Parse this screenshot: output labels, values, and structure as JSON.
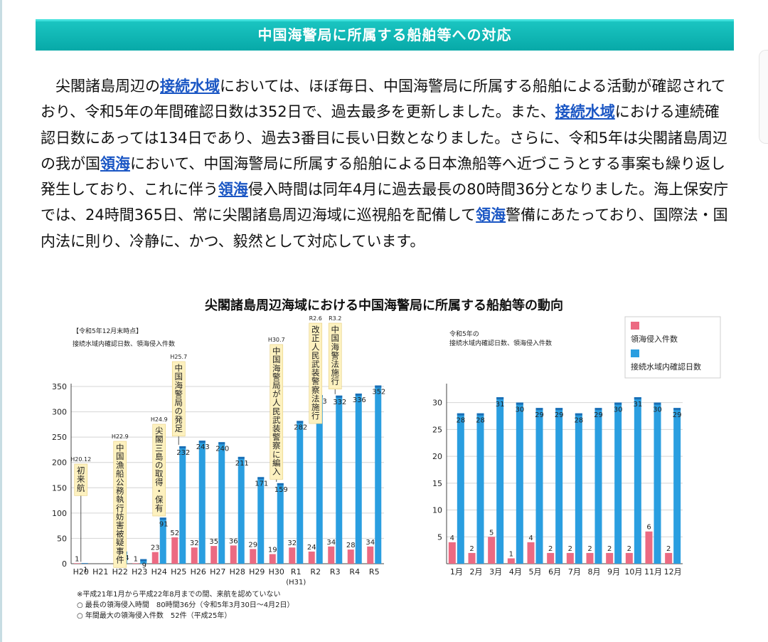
{
  "header": {
    "title": "中国海警局に所属する船舶等への対応"
  },
  "body": {
    "seg1": "尖閣諸島周辺の",
    "link1": "接続水域",
    "seg2": "においては、ほぼ毎日、中国海警局に所属する船舶による活動が確認されており、令和5年の年間確認日数は352日で、過去最多を更新しました。また、",
    "link2": "接続水域",
    "seg3": "における連続確認日数にあっては134日であり、過去3番目に長い日数となりました。さらに、令和5年は尖閣諸島周辺の我が国",
    "link3": "領海",
    "seg4": "において、中国海警局に所属する船舶による日本漁船等へ近づこうとする事案も繰り返し発生しており、これに伴う",
    "link4": "領海",
    "seg5": "侵入時間は同年4月に過去最長の80時間36分となりました。海上保安庁では、24時間365日、常に尖閣諸島周辺海域に巡視船を配備して",
    "link5": "領海",
    "seg6": "警備にあたっており、国際法・国内法に則り、冷静に、かつ、毅然として対応しています。"
  },
  "figure_title": "尖閣諸島周辺海域における中国海警局に所属する船舶等の動向",
  "colors": {
    "header": "#08aba9",
    "blue": "#2a9ee0",
    "blue_top": "#1a6fb6",
    "pink": "#ec6a82",
    "callout": "#fdf1bf",
    "link": "#1a56c4"
  },
  "chart_data": [
    {
      "type": "bar",
      "corner_label": "【令和5年12月末時点】",
      "subtitle": "接続水域内確認日数、領海侵入件数",
      "categories": [
        "H20",
        "H21",
        "H22",
        "H23",
        "H24",
        "H25",
        "H26",
        "H27",
        "H28",
        "H29",
        "H30",
        "R1",
        "R2",
        "R3",
        "R4",
        "R5"
      ],
      "category_sublabels": {
        "R1": "(H31)"
      },
      "series": [
        {
          "name": "領海侵入件数",
          "values": [
            1,
            0,
            0,
            1,
            23,
            52,
            32,
            35,
            36,
            29,
            19,
            32,
            24,
            34,
            28,
            34
          ],
          "labels": [
            "1",
            "",
            "",
            "1",
            "23",
            "52",
            "32",
            "35",
            "36",
            "29",
            "19",
            "32",
            "24",
            "34",
            "28",
            "34"
          ]
        },
        {
          "name": "接続水域内確認日数",
          "values": [
            1,
            0,
            24,
            9,
            91,
            232,
            243,
            240,
            211,
            171,
            159,
            282,
            333,
            332,
            336,
            352
          ],
          "labels": [
            "1",
            "",
            "24",
            "9",
            "91",
            "232",
            "243",
            "240",
            "211",
            "171",
            "159",
            "282",
            "333",
            "332",
            "336",
            "352"
          ]
        }
      ],
      "ylim": [
        0,
        350
      ],
      "yticks": [
        0,
        50,
        100,
        150,
        200,
        250,
        300,
        350
      ],
      "grid": true,
      "annotations": [
        {
          "category": "H20",
          "date": "H20.12",
          "text": "初来航"
        },
        {
          "category": "H22",
          "date": "H22.9",
          "text": "中国漁船公務執行妨害被疑事件"
        },
        {
          "category": "H24",
          "date": "H24.9",
          "text": "尖閣三島の取得・保有"
        },
        {
          "category": "H25",
          "date": "H25.7",
          "text": "中国海警局の発足"
        },
        {
          "category": "H30",
          "date": "H30.7",
          "text": "中国海警局が人民武装警察に編入"
        },
        {
          "category": "R2",
          "date": "R2.6",
          "text": "改正人民武装警察法施行"
        },
        {
          "category": "R3",
          "date": "R3.2",
          "text": "中国海警法施行"
        }
      ],
      "footnotes": [
        "※平成21年1月から平成22年8月までの間、来航を認めていない",
        "○ 最長の領海侵入時間　80時間36分（令和5年3月30日〜4月2日）",
        "○ 年間最大の領海侵入件数　52件（平成25年）"
      ]
    },
    {
      "type": "bar",
      "subtitle": "令和5年の接続水域内確認日数、領海侵入件数",
      "subtitle_lines": [
        "令和5年の",
        "接続水域内確認日数、領海侵入件数"
      ],
      "categories": [
        "1月",
        "2月",
        "3月",
        "4月",
        "5月",
        "6月",
        "7月",
        "8月",
        "9月",
        "10月",
        "11月",
        "12月"
      ],
      "series": [
        {
          "name": "領海侵入件数",
          "values": [
            4,
            2,
            5,
            1,
            4,
            2,
            2,
            2,
            2,
            2,
            6,
            2
          ]
        },
        {
          "name": "接続水域内確認日数",
          "values": [
            28,
            28,
            31,
            30,
            29,
            29,
            28,
            29,
            30,
            31,
            30,
            29
          ]
        }
      ],
      "ylim": [
        0,
        33
      ],
      "yticks": [
        5,
        10,
        15,
        20,
        25,
        30
      ],
      "grid": true,
      "legend": "top-right"
    }
  ]
}
